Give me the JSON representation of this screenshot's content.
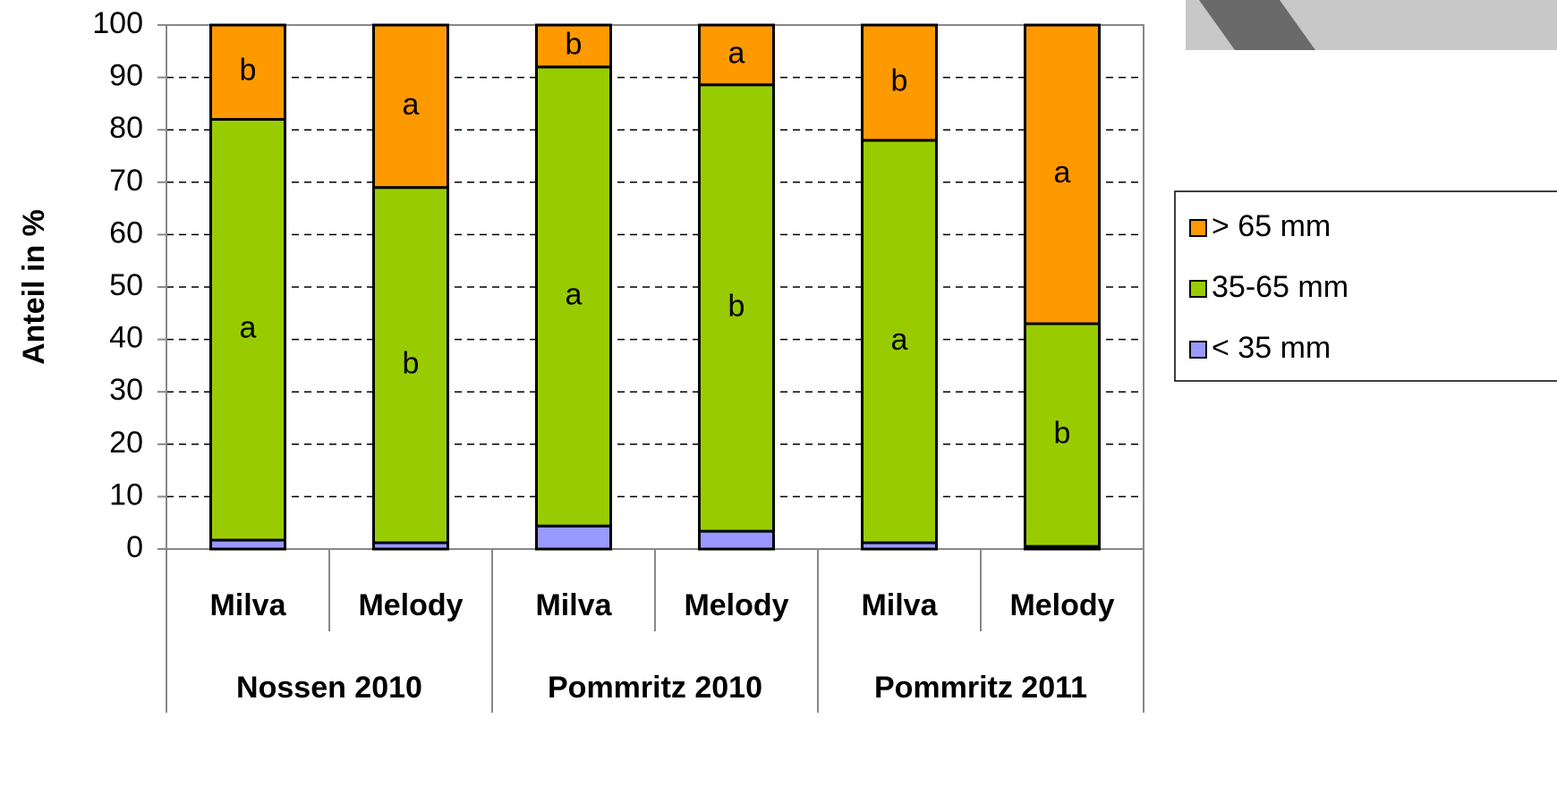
{
  "chart_data": {
    "type": "stacked-bar",
    "y_label": "Anteil in %",
    "categories": [
      "Milva",
      "Melody",
      "Milva",
      "Melody",
      "Milva",
      "Melody"
    ],
    "groups": [
      "Nossen 2010",
      "Pommritz 2010",
      "Pommritz 2011"
    ],
    "series": [
      {
        "name": "< 35 mm",
        "color": "#9999ff",
        "values": [
          1.7,
          1.2,
          4.4,
          3.4,
          1.2,
          0.5
        ]
      },
      {
        "name": "35-65 mm",
        "color": "#99cc00",
        "values": [
          80.3,
          67.8,
          87.6,
          85.2,
          76.8,
          42.5
        ],
        "labels": [
          "a",
          "b",
          "a",
          "b",
          "a",
          "b"
        ]
      },
      {
        "name": "> 65 mm",
        "color": "#ff9900",
        "values": [
          18,
          31,
          8,
          11.4,
          22,
          57
        ],
        "labels": [
          "b",
          "a",
          "b",
          "a",
          "b",
          "a"
        ]
      }
    ],
    "ylim": [
      0,
      100
    ],
    "yticks": [
      0,
      10,
      20,
      30,
      40,
      50,
      60,
      70,
      80,
      90,
      100
    ],
    "grid": true,
    "legend": "right"
  }
}
